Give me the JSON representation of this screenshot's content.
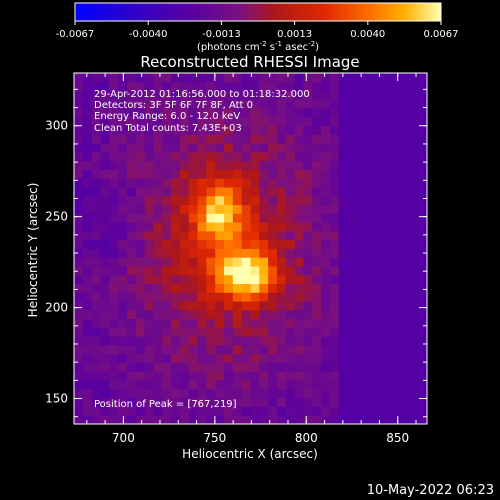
{
  "chart_data": {
    "type": "heatmap",
    "title": "Reconstructed RHESSI Image",
    "xlabel": "Heliocentric X (arcsec)",
    "ylabel": "Heliocentric Y (arcsec)",
    "xlim": [
      673,
      866
    ],
    "ylim": [
      136,
      329
    ],
    "xticks": [
      700,
      750,
      800,
      850
    ],
    "yticks": [
      150,
      200,
      250,
      300
    ],
    "colorbar": {
      "range": [
        -0.0067,
        0.0067
      ],
      "ticks": [
        "-0.0067",
        "-0.0040",
        "-0.0013",
        "0.0013",
        "0.0040",
        "0.0067"
      ],
      "unit_prefix": "(photons cm",
      "unit_exp1": "-2",
      "unit_mid": " s",
      "unit_exp2": "-1",
      "unit_mid2": " asec",
      "unit_exp3": "-2",
      "unit_suffix": ")"
    },
    "annotations": {
      "time_range": "29-Apr-2012 01:16:56.000 to 01:18:32.000",
      "detectors": "Detectors: 3F 5F 6F 7F 8F, Att 0",
      "energy": "Energy Range: 6.0 - 12.0 keV",
      "clean": "Clean     Total counts: 7.43E+03",
      "peak": "Position of Peak = [767,219]"
    },
    "peak": {
      "x": 767,
      "y": 219,
      "value": 0.0067
    }
  },
  "footer": {
    "timestamp": "10-May-2022 06:23"
  }
}
